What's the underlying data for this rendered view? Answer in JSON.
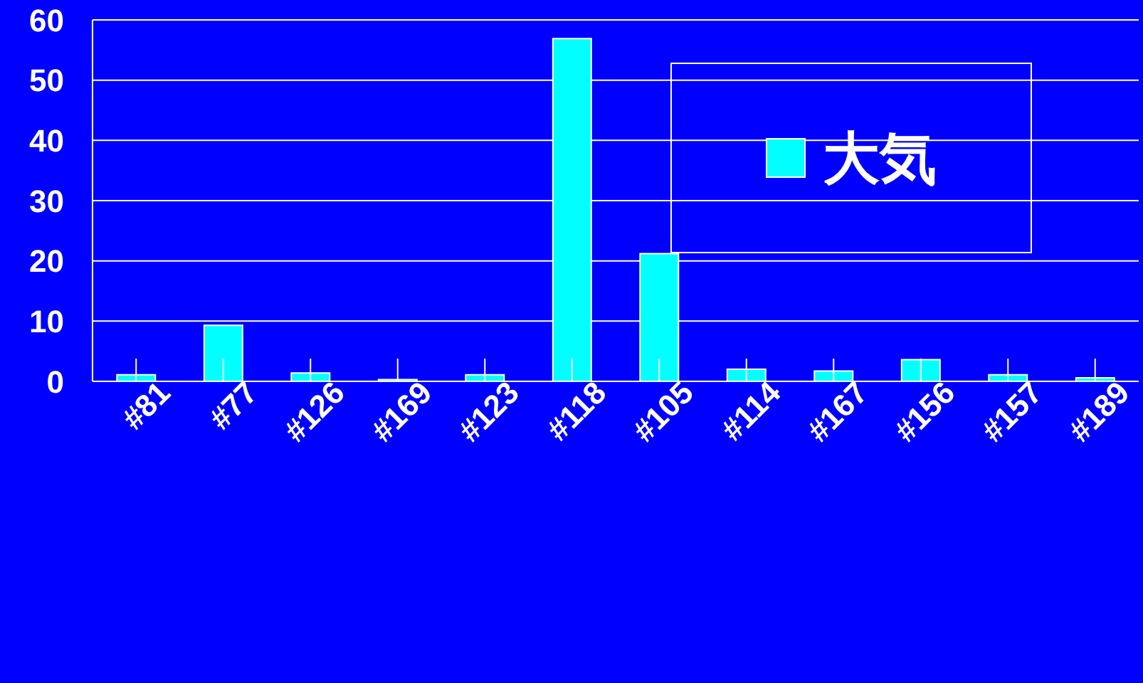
{
  "chart_data": {
    "type": "bar",
    "categories": [
      "#81",
      "#77",
      "#126",
      "#169",
      "#123",
      "#118",
      "#105",
      "#114",
      "#167",
      "#156",
      "#157",
      "#189"
    ],
    "series": [
      {
        "name": "大気",
        "color": "#00ffff",
        "values": [
          1.1,
          9.3,
          1.4,
          0.3,
          1.1,
          56.9,
          21.2,
          2.0,
          1.7,
          3.6,
          1.1,
          0.6
        ]
      }
    ],
    "ylim": [
      0,
      60
    ],
    "yticks": [
      0,
      10,
      20,
      30,
      40,
      50,
      60
    ],
    "grid": "y",
    "legend": "top right"
  }
}
